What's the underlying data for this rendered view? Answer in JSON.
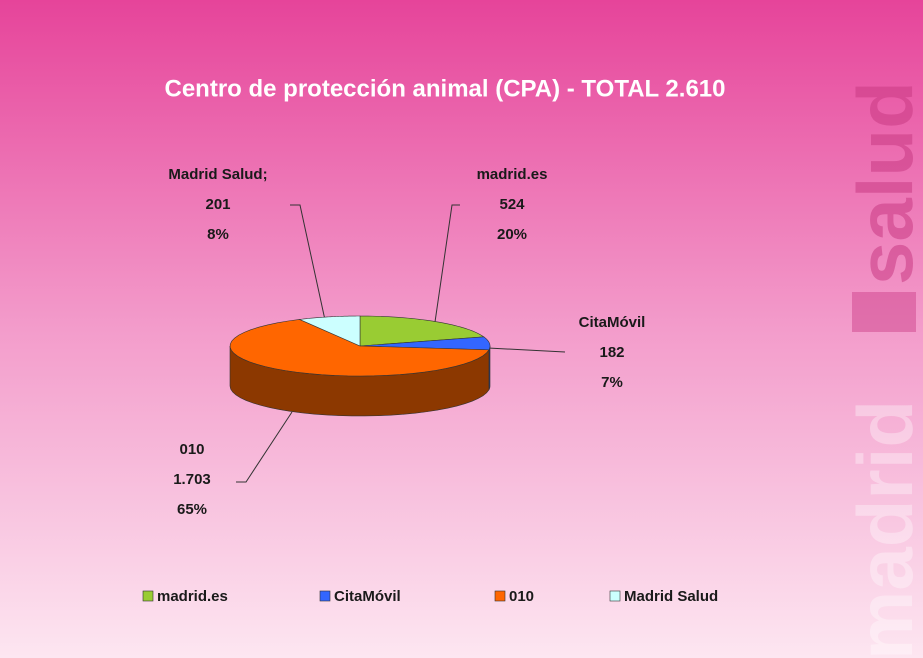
{
  "chart_data": {
    "type": "pie",
    "title": "Centro de protección animal (CPA) - TOTAL 2.610",
    "categories": [
      "madrid.es",
      "CitaMóvil",
      "010",
      "Madrid Salud"
    ],
    "label_names": [
      "madrid.es",
      "CitaMóvil",
      "010",
      "Madrid Salud;"
    ],
    "values": [
      524,
      182,
      1703,
      201
    ],
    "value_labels": [
      "524",
      "182",
      "1.703",
      "201"
    ],
    "percents": [
      20,
      7,
      65,
      8
    ],
    "percent_labels": [
      "20%",
      "7%",
      "65%",
      "8%"
    ],
    "colors": [
      "#99cc33",
      "#3366ff",
      "#ff6600",
      "#ccffff"
    ],
    "legend": "bottom"
  },
  "watermark": {
    "top": "salud",
    "bottom": "madrid"
  }
}
